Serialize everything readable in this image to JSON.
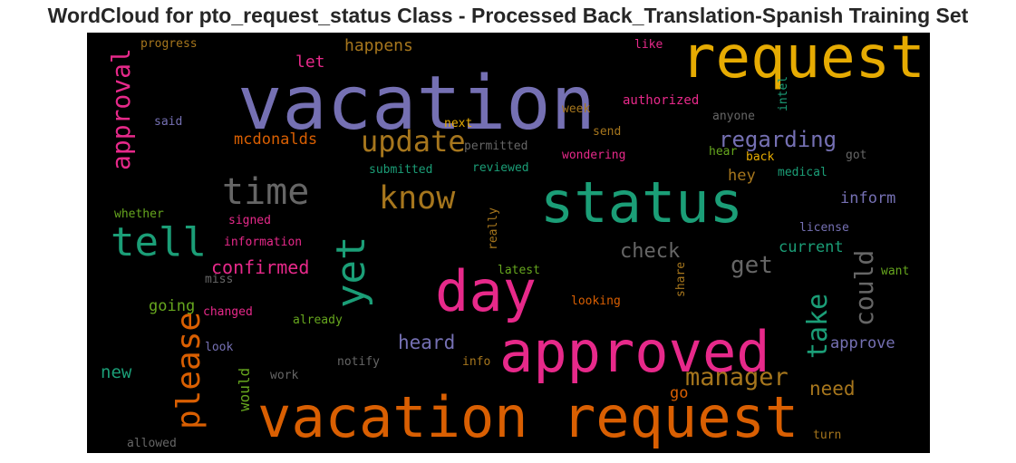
{
  "chart_data": {
    "type": "wordcloud",
    "title": "WordCloud for pto_request_status Class - Processed Back_Translation-Spanish Training Set",
    "background": "#000000",
    "colormap": "Dark2",
    "words": [
      {
        "text": "vacation",
        "color": "#7570b3"
      },
      {
        "text": "request",
        "color": "#e6ab02"
      },
      {
        "text": "status",
        "color": "#1b9e77"
      },
      {
        "text": "vacation request",
        "color": "#d95f02"
      },
      {
        "text": "approved",
        "color": "#e7298a"
      },
      {
        "text": "day",
        "color": "#e7298a"
      },
      {
        "text": "tell",
        "color": "#1b9e77"
      },
      {
        "text": "time",
        "color": "#666666"
      },
      {
        "text": "yet",
        "color": "#1b9e77"
      },
      {
        "text": "know",
        "color": "#a6761d"
      },
      {
        "text": "update",
        "color": "#a6761d"
      },
      {
        "text": "approval",
        "color": "#e7298a"
      },
      {
        "text": "please",
        "color": "#d95f02"
      },
      {
        "text": "take",
        "color": "#1b9e77"
      },
      {
        "text": "could",
        "color": "#666666"
      },
      {
        "text": "manager",
        "color": "#a6761d"
      },
      {
        "text": "regarding",
        "color": "#7570b3"
      },
      {
        "text": "check",
        "color": "#666666"
      },
      {
        "text": "get",
        "color": "#666666"
      },
      {
        "text": "confirmed",
        "color": "#e7298a"
      },
      {
        "text": "heard",
        "color": "#7570b3"
      },
      {
        "text": "need",
        "color": "#a6761d"
      },
      {
        "text": "mcdonalds",
        "color": "#d95f02"
      },
      {
        "text": "happens",
        "color": "#a6761d"
      },
      {
        "text": "let",
        "color": "#e7298a"
      },
      {
        "text": "new",
        "color": "#1b9e77"
      },
      {
        "text": "going",
        "color": "#66a61e"
      },
      {
        "text": "inform",
        "color": "#7570b3"
      },
      {
        "text": "current",
        "color": "#1b9e77"
      },
      {
        "text": "approve",
        "color": "#7570b3"
      },
      {
        "text": "hey",
        "color": "#a6761d"
      },
      {
        "text": "go",
        "color": "#d95f02"
      },
      {
        "text": "would",
        "color": "#66a61e"
      },
      {
        "text": "progress",
        "color": "#a6761d"
      },
      {
        "text": "said",
        "color": "#7570b3"
      },
      {
        "text": "next",
        "color": "#e6ab02"
      },
      {
        "text": "authorized",
        "color": "#e7298a"
      },
      {
        "text": "like",
        "color": "#e7298a"
      },
      {
        "text": "intel",
        "color": "#1b9e77"
      },
      {
        "text": "week",
        "color": "#a6761d"
      },
      {
        "text": "anyone",
        "color": "#666666"
      },
      {
        "text": "send",
        "color": "#a6761d"
      },
      {
        "text": "permitted",
        "color": "#666666"
      },
      {
        "text": "submitted",
        "color": "#1b9e77"
      },
      {
        "text": "reviewed",
        "color": "#1b9e77"
      },
      {
        "text": "wondering",
        "color": "#e7298a"
      },
      {
        "text": "hear",
        "color": "#66a61e"
      },
      {
        "text": "back",
        "color": "#e6ab02"
      },
      {
        "text": "medical",
        "color": "#1b9e77"
      },
      {
        "text": "got",
        "color": "#666666"
      },
      {
        "text": "whether",
        "color": "#66a61e"
      },
      {
        "text": "signed",
        "color": "#e7298a"
      },
      {
        "text": "information",
        "color": "#e7298a"
      },
      {
        "text": "really",
        "color": "#a6761d"
      },
      {
        "text": "license",
        "color": "#7570b3"
      },
      {
        "text": "latest",
        "color": "#66a61e"
      },
      {
        "text": "share",
        "color": "#a6761d"
      },
      {
        "text": "want",
        "color": "#66a61e"
      },
      {
        "text": "miss",
        "color": "#666666"
      },
      {
        "text": "looking",
        "color": "#d95f02"
      },
      {
        "text": "changed",
        "color": "#e7298a"
      },
      {
        "text": "already",
        "color": "#66a61e"
      },
      {
        "text": "look",
        "color": "#7570b3"
      },
      {
        "text": "notify",
        "color": "#666666"
      },
      {
        "text": "info",
        "color": "#a6761d"
      },
      {
        "text": "work",
        "color": "#666666"
      },
      {
        "text": "allowed",
        "color": "#666666"
      },
      {
        "text": "turn",
        "color": "#a6761d"
      }
    ]
  }
}
